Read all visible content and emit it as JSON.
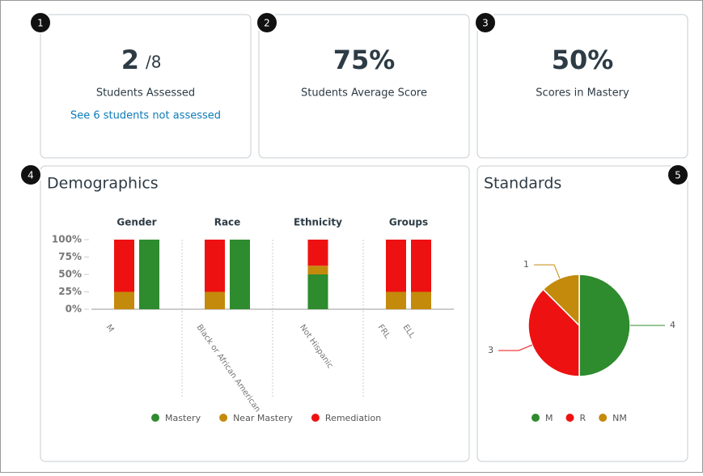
{
  "badges": [
    "1",
    "2",
    "3",
    "4",
    "5"
  ],
  "cards": [
    {
      "value": "2",
      "total": "/8",
      "label": "Students Assessed",
      "link": "See 6 students not assessed"
    },
    {
      "value": "75%",
      "label": "Students Average Score"
    },
    {
      "value": "50%",
      "label": "Scores in Mastery"
    }
  ],
  "chart_data": [
    {
      "type": "bar",
      "stacked": true,
      "title": "Demographics",
      "panels": [
        {
          "title": "Gender",
          "categories": [
            "M",
            null
          ]
        },
        {
          "title": "Race",
          "categories": [
            "Black or African American",
            null
          ]
        },
        {
          "title": "Ethnicity",
          "categories": [
            "Not Hispanic"
          ]
        },
        {
          "title": "Groups",
          "categories": [
            "FRL",
            "ELL"
          ]
        }
      ],
      "series": [
        {
          "name": "Mastery",
          "color": "#2e8b2e",
          "values": [
            0,
            100,
            0,
            100,
            50,
            0,
            0
          ]
        },
        {
          "name": "Near Mastery",
          "color": "#c48a0b",
          "values": [
            25,
            0,
            25,
            0,
            12.5,
            25,
            25
          ]
        },
        {
          "name": "Remediation",
          "color": "#ee1111",
          "values": [
            75,
            0,
            75,
            0,
            37.5,
            75,
            75
          ]
        }
      ],
      "ylim": [
        0,
        100
      ],
      "yticks": [
        {
          "value": 0,
          "label": "0%"
        },
        {
          "value": 25,
          "label": "25%"
        },
        {
          "value": 50,
          "label": "50%"
        },
        {
          "value": 75,
          "label": "75%"
        },
        {
          "value": 100,
          "label": "100%"
        }
      ],
      "legend": "bottom"
    },
    {
      "type": "pie",
      "title": "Standards",
      "categories": [
        "M",
        "R",
        "NM"
      ],
      "values": [
        4,
        3,
        1
      ],
      "colors": [
        "#2e8b2e",
        "#ee1111",
        "#c48a0b"
      ],
      "legend": "bottom"
    }
  ]
}
